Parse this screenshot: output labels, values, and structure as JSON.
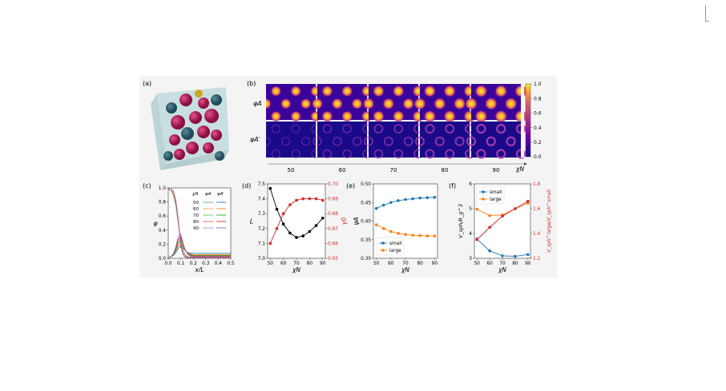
{
  "panel_labels": {
    "a": "(a)",
    "b": "(b)",
    "c": "(c)",
    "d": "(d)",
    "e": "(e)",
    "f": "(f)"
  },
  "b": {
    "row_labels": [
      "φA",
      "φA′"
    ],
    "xn_ticks": [
      "50",
      "60",
      "70",
      "80",
      "90"
    ],
    "axis_label": "χN",
    "colorbar_ticks": [
      "0.0",
      "0.2",
      "0.4",
      "0.6",
      "0.8",
      "1.0"
    ]
  },
  "chart_data": [
    {
      "panel": "c",
      "type": "line",
      "xlabel": "x/L",
      "ylabel": "φ",
      "xlim": [
        0.0,
        0.5
      ],
      "ylim": [
        0.0,
        1.0
      ],
      "x_ticks": [
        "0.0",
        "0.1",
        "0.2",
        "0.3",
        "0.4",
        "0.5"
      ],
      "y_ticks": [
        "0.0",
        "0.2",
        "0.4",
        "0.6",
        "0.8",
        "1.0"
      ],
      "legend_header": [
        "χN",
        "φA",
        "φA′"
      ],
      "x": [
        0.0,
        0.02,
        0.04,
        0.06,
        0.08,
        0.1,
        0.12,
        0.14,
        0.16,
        0.18,
        0.2,
        0.25,
        0.3,
        0.35,
        0.4,
        0.45,
        0.5
      ],
      "series": [
        {
          "name": "50",
          "color": "#1f77b4",
          "phiA": [
            0.98,
            0.96,
            0.9,
            0.75,
            0.5,
            0.25,
            0.1,
            0.04,
            0.02,
            0.02,
            0.02,
            0.02,
            0.02,
            0.02,
            0.02,
            0.02,
            0.02
          ],
          "phiAp": [
            0.01,
            0.02,
            0.04,
            0.08,
            0.14,
            0.18,
            0.14,
            0.1,
            0.08,
            0.07,
            0.07,
            0.07,
            0.07,
            0.07,
            0.07,
            0.07,
            0.07
          ]
        },
        {
          "name": "60",
          "color": "#ff7f0e",
          "phiA": [
            0.98,
            0.97,
            0.92,
            0.78,
            0.52,
            0.22,
            0.08,
            0.03,
            0.015,
            0.01,
            0.01,
            0.01,
            0.01,
            0.01,
            0.01,
            0.01,
            0.01
          ],
          "phiAp": [
            0.01,
            0.02,
            0.05,
            0.1,
            0.18,
            0.22,
            0.16,
            0.1,
            0.07,
            0.06,
            0.05,
            0.05,
            0.05,
            0.05,
            0.05,
            0.05,
            0.05
          ]
        },
        {
          "name": "70",
          "color": "#2ca02c",
          "phiA": [
            0.99,
            0.98,
            0.94,
            0.8,
            0.53,
            0.2,
            0.06,
            0.02,
            0.01,
            0.01,
            0.01,
            0.01,
            0.01,
            0.01,
            0.01,
            0.01,
            0.01
          ],
          "phiAp": [
            0.01,
            0.02,
            0.05,
            0.12,
            0.22,
            0.26,
            0.18,
            0.1,
            0.06,
            0.05,
            0.04,
            0.04,
            0.04,
            0.04,
            0.04,
            0.04,
            0.04
          ]
        },
        {
          "name": "80",
          "color": "#d62728",
          "phiA": [
            0.99,
            0.98,
            0.95,
            0.82,
            0.54,
            0.18,
            0.05,
            0.015,
            0.01,
            0.005,
            0.005,
            0.005,
            0.005,
            0.005,
            0.005,
            0.005,
            0.005
          ],
          "phiAp": [
            0.01,
            0.02,
            0.06,
            0.14,
            0.26,
            0.3,
            0.19,
            0.1,
            0.05,
            0.04,
            0.03,
            0.03,
            0.03,
            0.03,
            0.03,
            0.03,
            0.03
          ]
        },
        {
          "name": "90",
          "color": "#9467bd",
          "phiA": [
            0.99,
            0.99,
            0.96,
            0.84,
            0.55,
            0.16,
            0.04,
            0.01,
            0.005,
            0.005,
            0.005,
            0.005,
            0.005,
            0.005,
            0.005,
            0.005,
            0.005
          ],
          "phiAp": [
            0.01,
            0.02,
            0.06,
            0.16,
            0.3,
            0.34,
            0.2,
            0.1,
            0.05,
            0.03,
            0.02,
            0.02,
            0.02,
            0.02,
            0.02,
            0.02,
            0.02
          ]
        }
      ]
    },
    {
      "panel": "d",
      "type": "line",
      "xlabel": "χN",
      "ylabel": "L",
      "ylabel_right": "γ0",
      "x": [
        50,
        55,
        60,
        65,
        70,
        75,
        80,
        85,
        90
      ],
      "x_ticks": [
        "50",
        "60",
        "70",
        "80",
        "90"
      ],
      "ylim": [
        7.0,
        7.5
      ],
      "y_ticks": [
        "7.0",
        "7.1",
        "7.2",
        "7.3",
        "7.4",
        "7.5"
      ],
      "ylim_right": [
        0.65,
        0.7
      ],
      "y_ticks_right": [
        "0.65",
        "0.66",
        "0.67",
        "0.68",
        "0.69",
        "0.70"
      ],
      "series": [
        {
          "axis": "left",
          "color": "#000000",
          "values": [
            7.47,
            7.33,
            7.23,
            7.17,
            7.14,
            7.15,
            7.18,
            7.22,
            7.27
          ]
        },
        {
          "axis": "right",
          "color": "#d62728",
          "values": [
            0.66,
            0.67,
            0.68,
            0.686,
            0.689,
            0.69,
            0.69,
            0.69,
            0.689
          ]
        }
      ]
    },
    {
      "panel": "e",
      "type": "line",
      "xlabel": "χN",
      "ylabel": "ψA",
      "x": [
        50,
        55,
        60,
        65,
        70,
        75,
        80,
        85,
        90
      ],
      "x_ticks": [
        "50",
        "60",
        "70",
        "80",
        "90"
      ],
      "ylim": [
        0.3,
        0.5
      ],
      "y_ticks": [
        "0.30",
        "0.35",
        "0.40",
        "0.45",
        "0.50"
      ],
      "legend_position": "lower-left",
      "series": [
        {
          "name": "small",
          "color": "#1f77b4",
          "values": [
            0.434,
            0.443,
            0.45,
            0.455,
            0.458,
            0.46,
            0.462,
            0.463,
            0.464
          ]
        },
        {
          "name": "large",
          "color": "#ff7f0e",
          "values": [
            0.39,
            0.38,
            0.372,
            0.367,
            0.364,
            0.362,
            0.361,
            0.36,
            0.36
          ]
        }
      ]
    },
    {
      "panel": "f",
      "type": "line",
      "xlabel": "χN",
      "ylabel": "V_sph/R_g^3",
      "ylabel_right": "V_sph^large/V_sph^small",
      "x": [
        50,
        60,
        70,
        80,
        90
      ],
      "x_ticks": [
        "50",
        "60",
        "70",
        "80",
        "90"
      ],
      "ylim": [
        3,
        6
      ],
      "y_ticks": [
        "3",
        "4",
        "5",
        "6"
      ],
      "ylim_right": [
        1.2,
        1.8
      ],
      "y_ticks_right": [
        "1.2",
        "1.4",
        "1.6",
        "1.8"
      ],
      "legend_position": "top-left",
      "series": [
        {
          "name": "small",
          "color": "#1f77b4",
          "values": [
            3.78,
            3.3,
            3.1,
            3.08,
            3.15
          ]
        },
        {
          "name": "large",
          "color": "#ff7f0e",
          "values": [
            4.98,
            4.72,
            4.75,
            5.0,
            5.22
          ]
        },
        {
          "axis": "right",
          "color": "#d62728",
          "values": [
            1.35,
            1.45,
            1.54,
            1.6,
            1.66
          ]
        }
      ]
    }
  ]
}
